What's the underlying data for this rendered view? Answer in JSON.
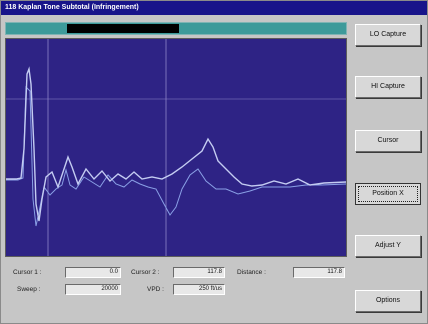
{
  "window": {
    "title": "118 Kaplan Tone Subtotal (Infringement)"
  },
  "progress": {
    "fill_start": 0.18,
    "fill_end": 0.51
  },
  "buttons": {
    "lo_capture": "LO Capture",
    "hi_capture": "HI Capture",
    "cursor": "Cursor",
    "position_x": "Position X",
    "adjust_y": "Adjust Y",
    "options": "Options"
  },
  "readouts": {
    "cursor1_label": "Cursor 1 :",
    "cursor1_value": "0.0",
    "cursor2_label": "Cursor 2 :",
    "cursor2_value": "117.8",
    "distance_label": "Distance :",
    "distance_value": "117.8",
    "sweep_label": "Sweep :",
    "sweep_value": "20000",
    "vpd_label": "VPD :",
    "vpd_value": "250 ft/us"
  },
  "colors": {
    "screen": "#2e2385",
    "trace": "#b8c4f0",
    "progress": "#3d9a9a",
    "title": "#18148a"
  }
}
